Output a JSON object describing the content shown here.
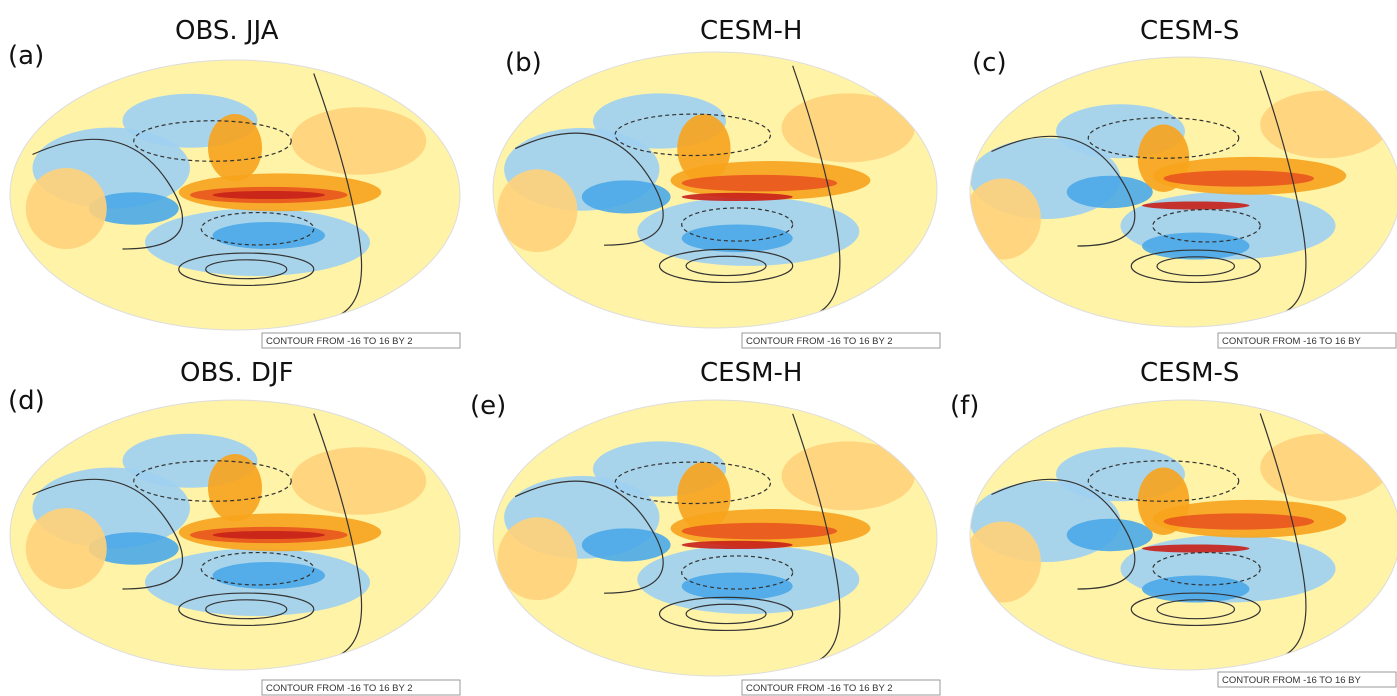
{
  "panels": [
    {
      "label": "(a)",
      "title": "OBS. JJA",
      "note": "CONTOUR FROM -16 TO 16 BY 2"
    },
    {
      "label": "(b)",
      "title": "CESM-H",
      "note": "CONTOUR FROM -16 TO 16 BY 2"
    },
    {
      "label": "(c)",
      "title": "CESM-S",
      "note": "CONTOUR FROM -16 TO 16 BY"
    },
    {
      "label": "(d)",
      "title": "OBS. DJF",
      "note": "CONTOUR FROM -16 TO 16 BY 2"
    },
    {
      "label": "(e)",
      "title": "CESM-H",
      "note": "CONTOUR FROM -16 TO 16 BY 2"
    },
    {
      "label": "(f)",
      "title": "CESM-S",
      "note": "CONTOUR FROM -16 TO 16 BY"
    }
  ]
}
